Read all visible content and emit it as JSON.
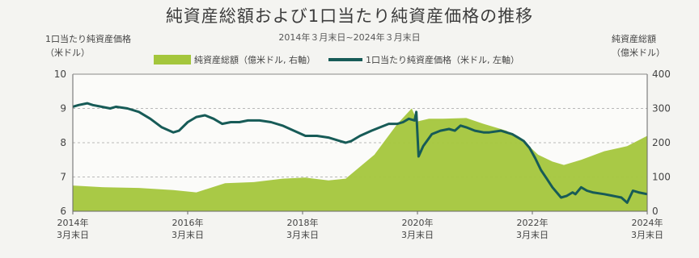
{
  "chart_data": {
    "type": "line",
    "title": "純資産総額および1口当たり純資産価格の推移",
    "subtitle": "2014年３月末日~2024年３月末日",
    "ylabel_left": [
      "1口当たり純資産価格",
      "（米ドル）"
    ],
    "ylabel_right": [
      "純資産総額",
      "（億米ドル）"
    ],
    "legend": {
      "area": "純資産総額（億米ドル, 右軸）",
      "line": "1口当たり純資産価格（米ドル, 左軸）"
    },
    "left_axis": {
      "min": 6,
      "max": 10,
      "ticks": [
        6,
        7,
        8,
        9,
        10
      ],
      "tick_labels": [
        "6",
        "7",
        "8",
        "9",
        "10"
      ]
    },
    "right_axis": {
      "min": 0,
      "max": 400,
      "ticks": [
        0,
        100,
        200,
        300,
        400
      ],
      "tick_labels": [
        "0",
        "100",
        "200",
        "300",
        "400"
      ]
    },
    "x_range": [
      2014.25,
      2024.25
    ],
    "x_ticks": [
      {
        "x": 2014.25,
        "year": "2014年",
        "month": "3月末日"
      },
      {
        "x": 2016.25,
        "year": "2016年",
        "month": "3月末日"
      },
      {
        "x": 2018.25,
        "year": "2018年",
        "month": "3月末日"
      },
      {
        "x": 2020.25,
        "year": "2020年",
        "month": "3月末日"
      },
      {
        "x": 2022.25,
        "year": "2022年",
        "month": "3月末日"
      },
      {
        "x": 2024.25,
        "year": "2024年",
        "month": "3月末日"
      }
    ],
    "grid": "dashed-horizontal",
    "series": [
      {
        "kind": "area",
        "axis": "right",
        "color": "#a4c63c",
        "x": [
          2014.25,
          2014.8,
          2015.4,
          2016.0,
          2016.4,
          2016.9,
          2017.4,
          2017.9,
          2018.3,
          2018.7,
          2019.0,
          2019.5,
          2019.9,
          2020.15,
          2020.25,
          2020.45,
          2020.7,
          2021.1,
          2021.4,
          2021.8,
          2022.1,
          2022.35,
          2022.6,
          2022.8,
          2023.1,
          2023.5,
          2023.9,
          2024.25
        ],
        "values": [
          75,
          70,
          68,
          62,
          55,
          82,
          85,
          95,
          98,
          90,
          95,
          165,
          255,
          300,
          262,
          270,
          270,
          272,
          255,
          235,
          205,
          165,
          145,
          135,
          150,
          175,
          190,
          220
        ]
      },
      {
        "kind": "line",
        "axis": "left",
        "color": "#175b57",
        "x": [
          2014.25,
          2014.35,
          2014.5,
          2014.6,
          2014.75,
          2014.9,
          2015.0,
          2015.2,
          2015.4,
          2015.6,
          2015.8,
          2016.0,
          2016.1,
          2016.25,
          2016.4,
          2016.55,
          2016.7,
          2016.85,
          2017.0,
          2017.15,
          2017.3,
          2017.5,
          2017.7,
          2017.9,
          2018.1,
          2018.3,
          2018.5,
          2018.7,
          2018.9,
          2019.0,
          2019.1,
          2019.25,
          2019.45,
          2019.6,
          2019.75,
          2019.9,
          2020.0,
          2020.1,
          2020.2,
          2020.23,
          2020.27,
          2020.35,
          2020.5,
          2020.65,
          2020.8,
          2020.9,
          2021.0,
          2021.1,
          2021.25,
          2021.4,
          2021.5,
          2021.7,
          2021.9,
          2022.0,
          2022.1,
          2022.2,
          2022.3,
          2022.4,
          2022.5,
          2022.6,
          2022.75,
          2022.85,
          2022.95,
          2023.0,
          2023.1,
          2023.2,
          2023.3,
          2023.5,
          2023.65,
          2023.8,
          2023.9,
          2024.0,
          2024.1,
          2024.25
        ],
        "values": [
          9.05,
          9.1,
          9.15,
          9.1,
          9.05,
          9.0,
          9.05,
          9.0,
          8.9,
          8.7,
          8.45,
          8.3,
          8.35,
          8.6,
          8.75,
          8.8,
          8.7,
          8.55,
          8.6,
          8.6,
          8.65,
          8.65,
          8.6,
          8.5,
          8.35,
          8.2,
          8.2,
          8.15,
          8.05,
          8.0,
          8.05,
          8.2,
          8.35,
          8.45,
          8.55,
          8.55,
          8.6,
          8.7,
          8.65,
          8.9,
          7.6,
          7.9,
          8.25,
          8.35,
          8.4,
          8.35,
          8.5,
          8.45,
          8.35,
          8.3,
          8.3,
          8.35,
          8.25,
          8.15,
          8.05,
          7.85,
          7.55,
          7.2,
          6.95,
          6.7,
          6.4,
          6.45,
          6.55,
          6.5,
          6.7,
          6.6,
          6.55,
          6.5,
          6.45,
          6.4,
          6.25,
          6.6,
          6.55,
          6.5
        ]
      }
    ]
  }
}
